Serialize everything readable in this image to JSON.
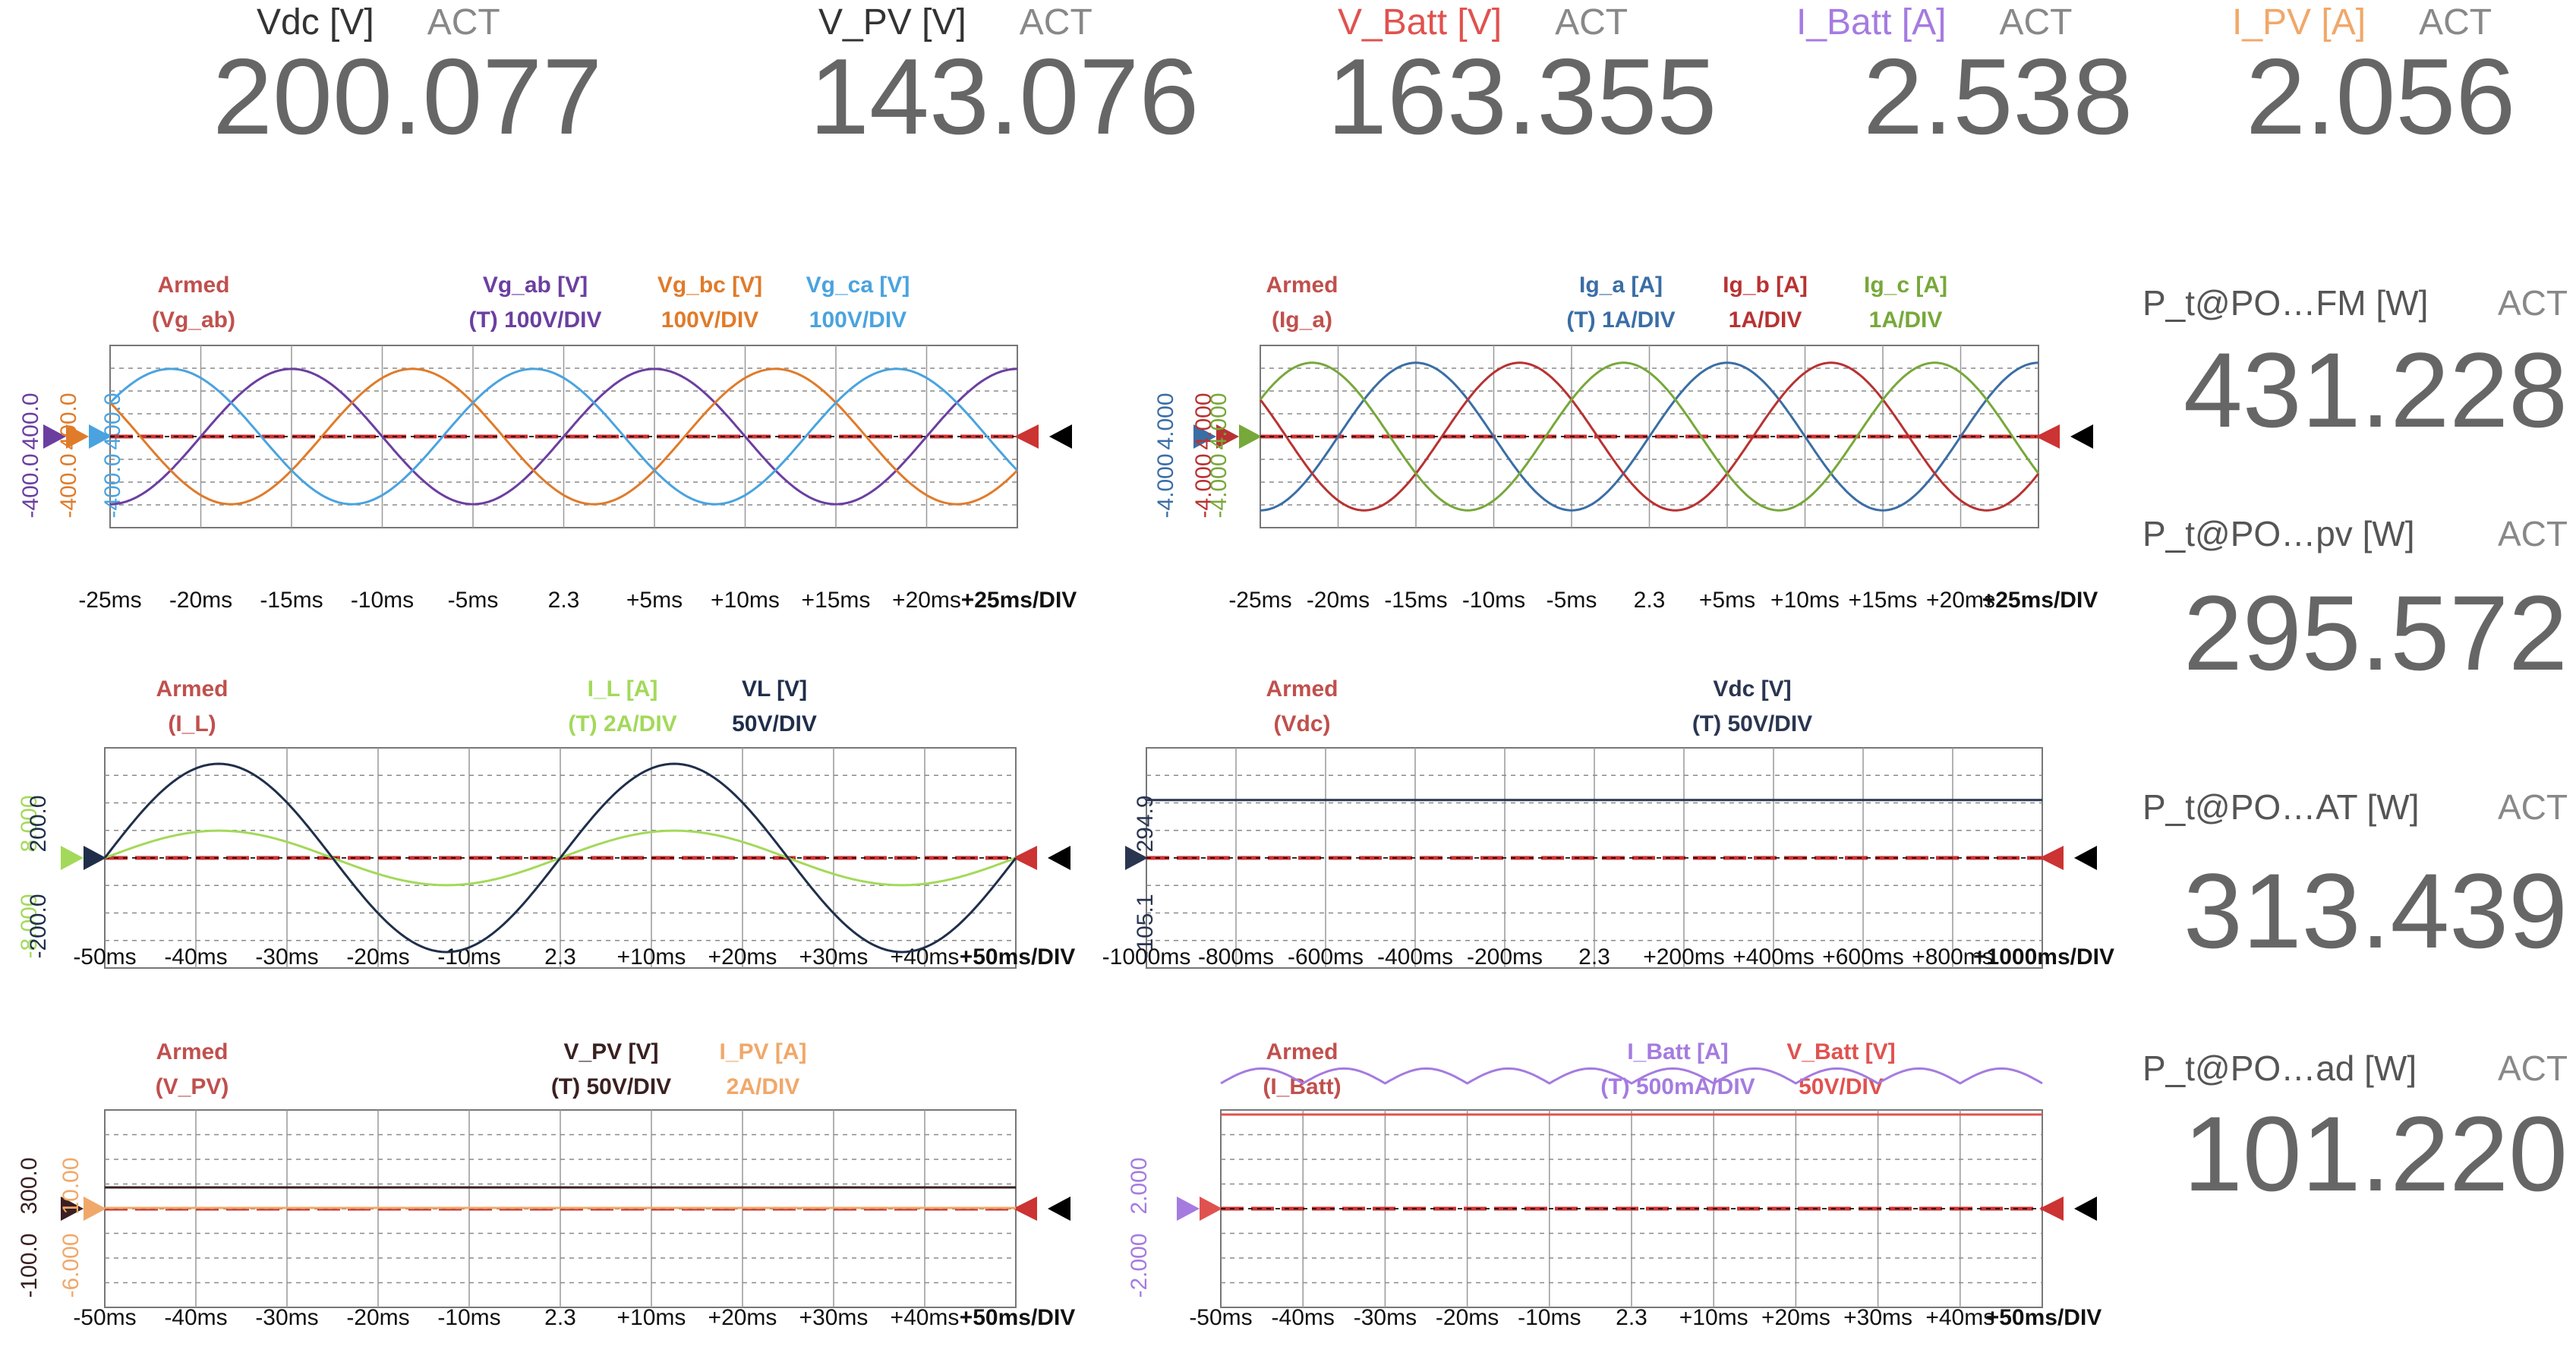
{
  "top_meters": [
    {
      "label": "Vdc [V]",
      "act": "ACT",
      "value": "200.077",
      "color": "#333333"
    },
    {
      "label": "V_PV [V]",
      "act": "ACT",
      "value": "143.076",
      "color": "#333333"
    },
    {
      "label": "V_Batt [V]",
      "act": "ACT",
      "value": "163.355",
      "color": "#e0524f"
    },
    {
      "label": "I_Batt [A]",
      "act": "ACT",
      "value": "2.538",
      "color": "#a57be0"
    },
    {
      "label": "I_PV [A]",
      "act": "ACT",
      "value": "2.056",
      "color": "#f0a86a"
    }
  ],
  "side_meters": [
    {
      "label": "P_t@PO…FM [W]",
      "act": "ACT",
      "value": "431.228"
    },
    {
      "label": "P_t@PO…pv [W]",
      "act": "ACT",
      "value": "295.572"
    },
    {
      "label": "P_t@PO…AT [W]",
      "act": "ACT",
      "value": "313.439"
    },
    {
      "label": "P_t@PO…ad [W]",
      "act": "ACT",
      "value": "101.220"
    }
  ],
  "colors": {
    "armed": "#c0504d",
    "grid": "#999999",
    "trigger_level": "#cc3333",
    "trigger_marker": "#000000"
  },
  "scopes": [
    {
      "id": "scope-grid-voltage",
      "armed": "Armed",
      "armed_source": "(Vg_ab)",
      "channels": [
        {
          "name": "Vg_ab [V]",
          "scale": "(T) 100V/DIV",
          "color": "#6b3fa0",
          "amp": 330,
          "freq": 50,
          "phase": 0,
          "axis_top": "400.0",
          "axis_bot": "-400.0"
        },
        {
          "name": "Vg_bc [V]",
          "scale": "100V/DIV",
          "color": "#e07b2a",
          "amp": 330,
          "freq": 50,
          "phase": -120,
          "axis_top": "400.0",
          "axis_bot": "-400.0"
        },
        {
          "name": "Vg_ca [V]",
          "scale": "100V/DIV",
          "color": "#4aa3df",
          "amp": 330,
          "freq": 50,
          "phase": 120,
          "axis_top": "400.0",
          "axis_bot": "-400.0"
        }
      ],
      "x_ticks": [
        "-25ms",
        "-20ms",
        "-15ms",
        "-10ms",
        "-5ms",
        "2.3",
        "+5ms",
        "+10ms",
        "+15ms",
        "+20ms",
        "+25ms/DIV"
      ],
      "x_span_ms": 50,
      "y_per_div": 100
    },
    {
      "id": "scope-grid-current",
      "armed": "Armed",
      "armed_source": "(Ig_a)",
      "channels": [
        {
          "name": "Ig_a [A]",
          "scale": "(T) 1A/DIV",
          "color": "#3a6ea5",
          "amp": 3.6,
          "freq": 50,
          "phase": 0,
          "axis_top": "4.000",
          "axis_bot": "-4.000"
        },
        {
          "name": "Ig_b [A]",
          "scale": "1A/DIV",
          "color": "#b83232",
          "amp": 3.6,
          "freq": 50,
          "phase": -120,
          "axis_top": "4.000",
          "axis_bot": "-4.000"
        },
        {
          "name": "Ig_c [A]",
          "scale": "1A/DIV",
          "color": "#77a83a",
          "amp": 3.6,
          "freq": 50,
          "phase": 120,
          "axis_top": "4.000",
          "axis_bot": "-4.000"
        }
      ],
      "x_ticks": [
        "-25ms",
        "-20ms",
        "-15ms",
        "-10ms",
        "-5ms",
        "2.3",
        "+5ms",
        "+10ms",
        "+15ms",
        "+20ms",
        "+25ms/DIV"
      ],
      "x_span_ms": 50,
      "y_per_div": 1
    },
    {
      "id": "scope-inductor",
      "armed": "Armed",
      "armed_source": "(I_L)",
      "channels": [
        {
          "name": "I_L [A]",
          "scale": "(T) 2A/DIV",
          "color": "#a3d95a",
          "amp": 2.2,
          "freq": 20,
          "phase": 0,
          "axis_top": "8.000",
          "axis_bot": "-8.000"
        },
        {
          "name": "VL [V]",
          "scale": "50V/DIV",
          "color": "#1f2f4a",
          "amp": 190,
          "freq": 20,
          "phase": 0,
          "axis_top": "200.0",
          "axis_bot": "-200.0"
        }
      ],
      "x_ticks": [
        "-50ms",
        "-40ms",
        "-30ms",
        "-20ms",
        "-10ms",
        "2.3",
        "+10ms",
        "+20ms",
        "+30ms",
        "+40ms",
        "+50ms/DIV"
      ],
      "x_span_ms": 100,
      "y_per_div": 1
    },
    {
      "id": "scope-dc-link",
      "armed": "Armed",
      "armed_source": "(Vdc)",
      "channels": [
        {
          "name": "Vdc [V]",
          "scale": "(T) 50V/DIV",
          "color": "#2a3550",
          "dc": 200.0,
          "axis_top": "294.9",
          "axis_bot": "-105.1"
        }
      ],
      "x_ticks": [
        "-1000ms",
        "-800ms",
        "-600ms",
        "-400ms",
        "-200ms",
        "2.3",
        "+200ms",
        "+400ms",
        "+600ms",
        "+800ms",
        "+1000ms/DIV"
      ],
      "x_span_ms": 2000,
      "y_per_div": 50
    },
    {
      "id": "scope-pv",
      "armed": "Armed",
      "armed_source": "(V_PV)",
      "channels": [
        {
          "name": "V_PV [V]",
          "scale": "(T) 50V/DIV",
          "color": "#3a2020",
          "dc": 143.0,
          "axis_top": "300.0",
          "axis_bot": "-100.0"
        },
        {
          "name": "I_PV [A]",
          "scale": "2A/DIV",
          "color": "#f0a86a",
          "dc": 2.06,
          "axis_top": "10.00",
          "axis_bot": "-6.000"
        }
      ],
      "x_ticks": [
        "-50ms",
        "-40ms",
        "-30ms",
        "-20ms",
        "-10ms",
        "2.3",
        "+10ms",
        "+20ms",
        "+30ms",
        "+40ms",
        "+50ms/DIV"
      ],
      "x_span_ms": 100,
      "y_per_div": 1
    },
    {
      "id": "scope-battery",
      "armed": "Armed",
      "armed_source": "(I_Batt)",
      "channels": [
        {
          "name": "I_Batt [A]",
          "scale": "(T) 500mA/DIV",
          "color": "#a57be0",
          "dc": 2.54,
          "ripple": 0.3,
          "axis_top": "2.000",
          "axis_bot": "-2.000"
        },
        {
          "name": "V_Batt [V]",
          "scale": "50V/DIV",
          "color": "#e0524f",
          "dc": 163.0,
          "axis_top": "",
          "axis_bot": ""
        }
      ],
      "x_ticks": [
        "-50ms",
        "-40ms",
        "-30ms",
        "-20ms",
        "-10ms",
        "2.3",
        "+10ms",
        "+20ms",
        "+30ms",
        "+40ms",
        "+50ms/DIV"
      ],
      "x_span_ms": 100,
      "y_per_div": 1
    }
  ]
}
